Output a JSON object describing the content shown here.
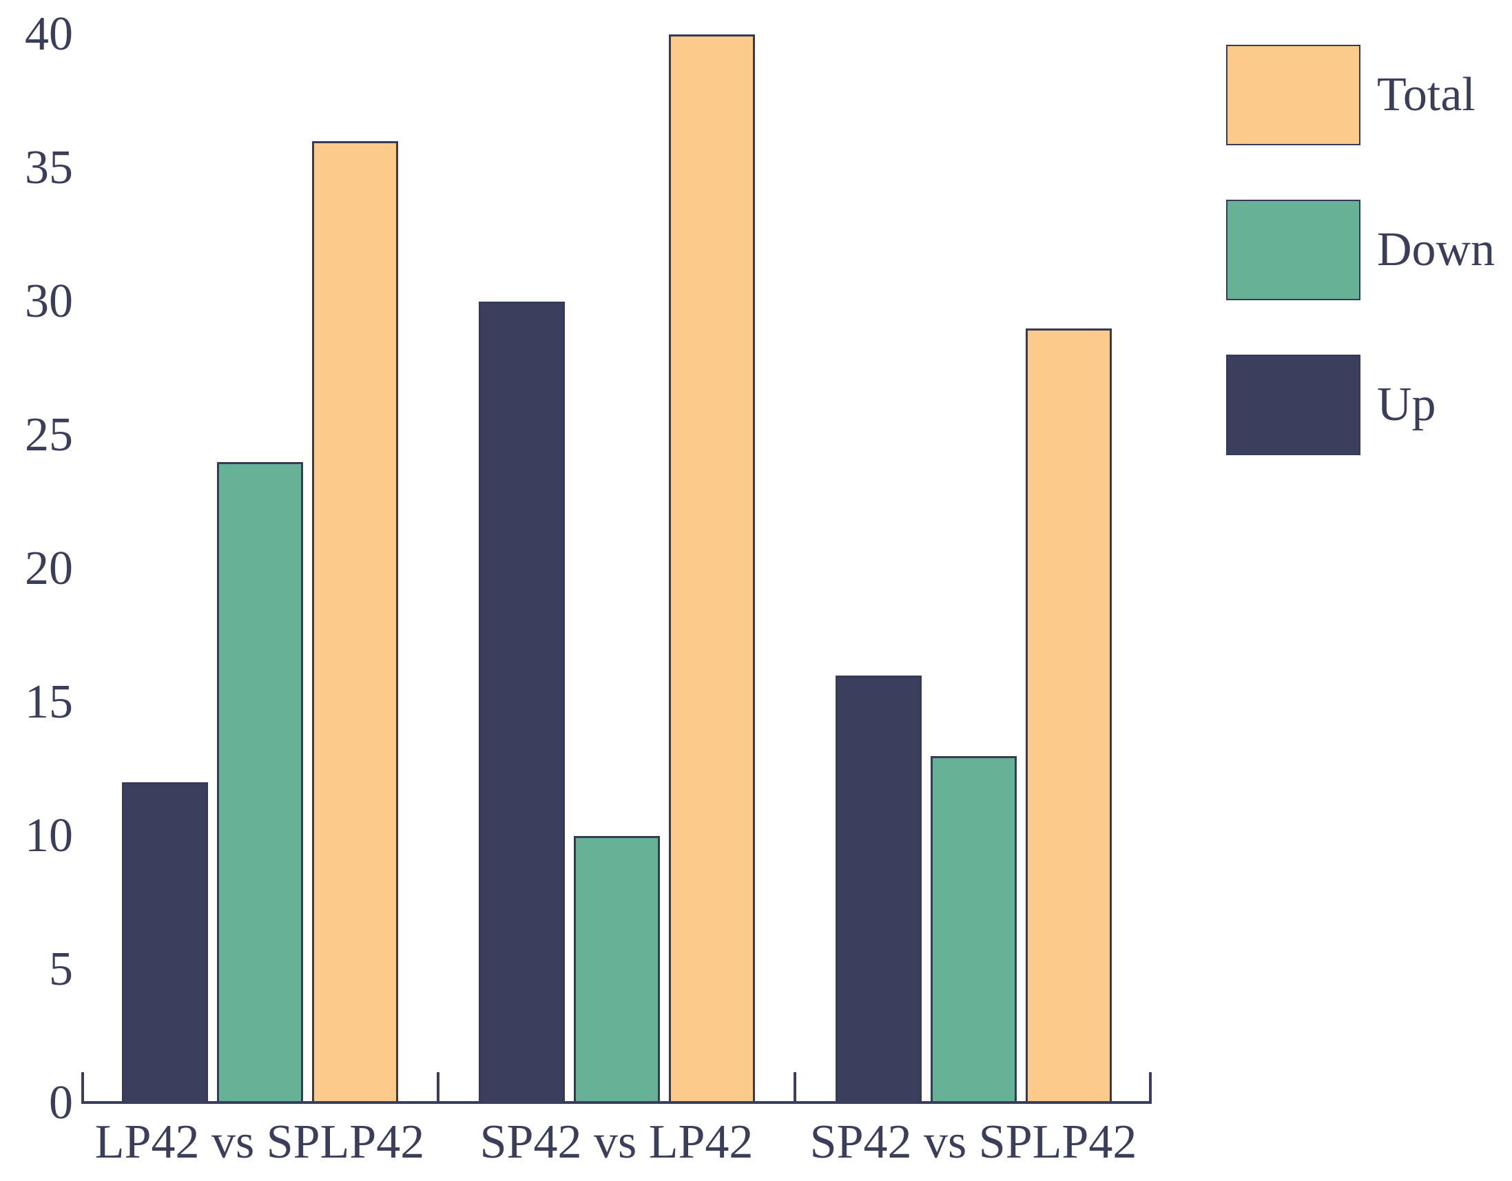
{
  "chart_data": {
    "type": "bar",
    "title": "",
    "xlabel": "",
    "ylabel": "",
    "categories": [
      "LP42 vs SPLP42",
      "SP42 vs LP42",
      "SP42 vs SPLP42"
    ],
    "series": [
      {
        "name": "Up",
        "color": "#3B3E5C",
        "values": [
          12,
          30,
          16
        ]
      },
      {
        "name": "Down",
        "color": "#67B297",
        "values": [
          24,
          10,
          13
        ]
      },
      {
        "name": "Total",
        "color": "#FCCA8B",
        "values": [
          36,
          40,
          29
        ]
      }
    ],
    "legend_order": [
      "Total",
      "Down",
      "Up"
    ],
    "legend_position": "upper right",
    "ylim": [
      0,
      40
    ],
    "yticks": [
      0,
      5,
      10,
      15,
      20,
      25,
      30,
      35,
      40
    ],
    "grid": false
  },
  "styles": {
    "axis_color": "#3A3E5B",
    "text_color": "#3A3E5B",
    "bar_edge_color": "#363A59",
    "background": "#FFFFFF"
  }
}
